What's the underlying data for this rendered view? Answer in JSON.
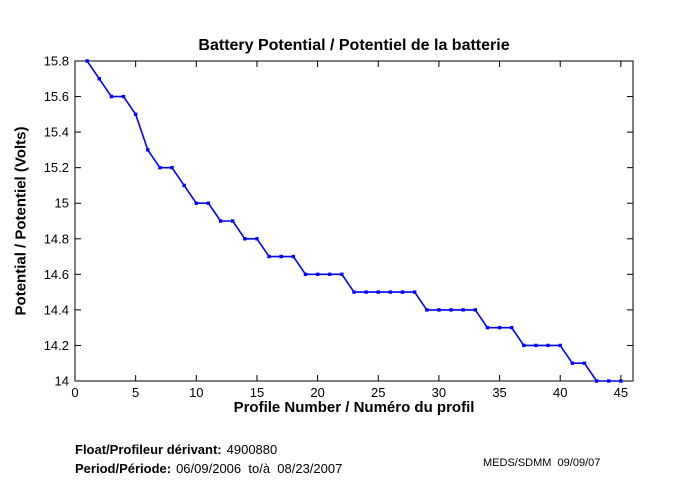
{
  "chart_data": {
    "type": "line",
    "title": "Battery Potential / Potentiel de la batterie",
    "xlabel": "Profile Number / Numéro du profil",
    "ylabel": "Potential / Potentiel (Volts)",
    "xlim": [
      0,
      46
    ],
    "ylim": [
      14,
      15.8
    ],
    "grid": false,
    "legend": "none",
    "line_color": "#0000FF",
    "marker": "square",
    "xticks": [
      0,
      5,
      10,
      15,
      20,
      25,
      30,
      35,
      40,
      45
    ],
    "xtick_labels": [
      "0",
      "5",
      "10",
      "15",
      "20",
      "25",
      "30",
      "35",
      "40",
      "45"
    ],
    "yticks": [
      14,
      14.2,
      14.4,
      14.6,
      14.8,
      15,
      15.2,
      15.4,
      15.6,
      15.8
    ],
    "ytick_labels": [
      "14",
      "14.2",
      "14.4",
      "14.6",
      "14.8",
      "15",
      "15.2",
      "15.4",
      "15.6",
      "15.8"
    ],
    "series": [
      {
        "name": "battery potential",
        "x": [
          1,
          2,
          3,
          4,
          5,
          6,
          7,
          8,
          9,
          10,
          11,
          12,
          13,
          14,
          15,
          16,
          17,
          18,
          19,
          20,
          21,
          22,
          23,
          24,
          25,
          26,
          27,
          28,
          29,
          30,
          31,
          32,
          33,
          34,
          35,
          36,
          37,
          38,
          39,
          40,
          41,
          42,
          43,
          44,
          45
        ],
        "y": [
          15.8,
          15.7,
          15.6,
          15.6,
          15.5,
          15.3,
          15.2,
          15.2,
          15.1,
          15.0,
          15.0,
          14.9,
          14.9,
          14.8,
          14.8,
          14.7,
          14.7,
          14.7,
          14.6,
          14.6,
          14.6,
          14.6,
          14.5,
          14.5,
          14.5,
          14.5,
          14.5,
          14.5,
          14.4,
          14.4,
          14.4,
          14.4,
          14.4,
          14.3,
          14.3,
          14.3,
          14.2,
          14.2,
          14.2,
          14.2,
          14.1,
          14.1,
          14.0,
          14.0,
          14.0
        ]
      }
    ]
  },
  "footer": {
    "float_label": "Float/Profileur dérivant:",
    "float_value": "4900880",
    "period_label": "Period/Période:",
    "period_value": "06/09/2006  to/à  08/23/2007",
    "credit": "MEDS/SDMM  09/09/07"
  }
}
